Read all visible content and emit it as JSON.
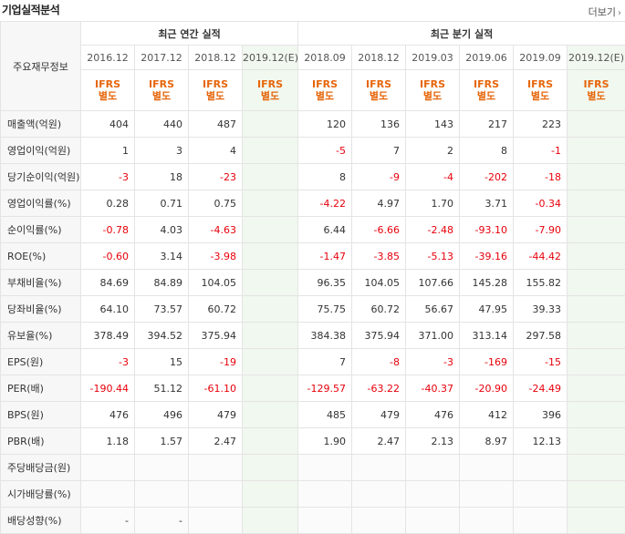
{
  "header": {
    "title": "기업실적분석",
    "more_label": "더보기",
    "more_icon": "chevron-right-icon"
  },
  "table": {
    "corner_label": "주요재무정보",
    "groups": {
      "annual": "최근 연간 실적",
      "quarterly": "최근 분기 실적"
    },
    "periods": [
      "2016.12",
      "2017.12",
      "2018.12",
      "2019.12(E)",
      "2018.09",
      "2018.12",
      "2019.03",
      "2019.06",
      "2019.09",
      "2019.12(E)"
    ],
    "standard": {
      "line1": "IFRS",
      "line2": "별도"
    },
    "rows": [
      {
        "label": "매출액(억원)",
        "values": [
          "404",
          "440",
          "487",
          "",
          "120",
          "136",
          "143",
          "217",
          "223",
          ""
        ]
      },
      {
        "label": "영업이익(억원)",
        "values": [
          "1",
          "3",
          "4",
          "",
          "-5",
          "7",
          "2",
          "8",
          "-1",
          ""
        ]
      },
      {
        "label": "당기순이익(억원)",
        "values": [
          "-3",
          "18",
          "-23",
          "",
          "8",
          "-9",
          "-4",
          "-202",
          "-18",
          ""
        ]
      },
      {
        "label": "영업이익률(%)",
        "values": [
          "0.28",
          "0.71",
          "0.75",
          "",
          "-4.22",
          "4.97",
          "1.70",
          "3.71",
          "-0.34",
          ""
        ]
      },
      {
        "label": "순이익률(%)",
        "values": [
          "-0.78",
          "4.03",
          "-4.63",
          "",
          "6.44",
          "-6.66",
          "-2.48",
          "-93.10",
          "-7.90",
          ""
        ]
      },
      {
        "label": "ROE(%)",
        "values": [
          "-0.60",
          "3.14",
          "-3.98",
          "",
          "-1.47",
          "-3.85",
          "-5.13",
          "-39.16",
          "-44.42",
          ""
        ]
      },
      {
        "label": "부채비율(%)",
        "values": [
          "84.69",
          "84.89",
          "104.05",
          "",
          "96.35",
          "104.05",
          "107.66",
          "145.28",
          "155.82",
          ""
        ]
      },
      {
        "label": "당좌비율(%)",
        "values": [
          "64.10",
          "73.57",
          "60.72",
          "",
          "75.75",
          "60.72",
          "56.67",
          "47.95",
          "39.33",
          ""
        ]
      },
      {
        "label": "유보율(%)",
        "values": [
          "378.49",
          "394.52",
          "375.94",
          "",
          "384.38",
          "375.94",
          "371.00",
          "313.14",
          "297.58",
          ""
        ]
      },
      {
        "label": "EPS(원)",
        "values": [
          "-3",
          "15",
          "-19",
          "",
          "7",
          "-8",
          "-3",
          "-169",
          "-15",
          ""
        ]
      },
      {
        "label": "PER(배)",
        "values": [
          "-190.44",
          "51.12",
          "-61.10",
          "",
          "-129.57",
          "-63.22",
          "-40.37",
          "-20.90",
          "-24.49",
          ""
        ]
      },
      {
        "label": "BPS(원)",
        "values": [
          "476",
          "496",
          "479",
          "",
          "485",
          "479",
          "476",
          "412",
          "396",
          ""
        ]
      },
      {
        "label": "PBR(배)",
        "values": [
          "1.18",
          "1.57",
          "2.47",
          "",
          "1.90",
          "2.47",
          "2.13",
          "8.97",
          "12.13",
          ""
        ]
      },
      {
        "label": "주당배당금(원)",
        "values": [
          "",
          "",
          "",
          "",
          "",
          "",
          "",
          "",
          "",
          ""
        ]
      },
      {
        "label": "시가배당률(%)",
        "values": [
          "",
          "",
          "",
          "",
          "",
          "",
          "",
          "",
          "",
          ""
        ]
      },
      {
        "label": "배당성향(%)",
        "values": [
          "-",
          "-",
          "",
          "",
          "",
          "",
          "",
          "",
          "",
          ""
        ]
      }
    ]
  },
  "colors": {
    "negative": "#e8000b",
    "estimate_bg": "#f1f8ef",
    "standard": "#e6660b",
    "estimate_label": "#55aa44"
  }
}
